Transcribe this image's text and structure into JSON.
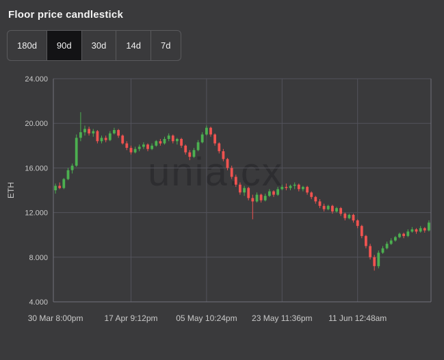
{
  "page": {
    "title": "Floor price candlestick"
  },
  "toolbar": {
    "ranges": [
      {
        "label": "180d"
      },
      {
        "label": "90d"
      },
      {
        "label": "30d"
      },
      {
        "label": "14d"
      },
      {
        "label": "7d"
      }
    ],
    "active_range": "90d"
  },
  "colors": {
    "background": "#3a3a3c",
    "up": "#4caf50",
    "down": "#ef5350",
    "grid": "#53535c",
    "axis_line": "#72727c",
    "axis_text": "#c9c9c9",
    "watermark": "#2d2d30",
    "button_active_bg": "#131315",
    "button_border": "#5a5a5d"
  },
  "chart_data": {
    "type": "candlestick",
    "title": "Floor price candlestick",
    "ylabel": "ETH",
    "watermark": "unia.cx",
    "y_range": [
      4,
      24
    ],
    "y_ticks": [
      {
        "value": 24,
        "label": "24.000"
      },
      {
        "value": 20,
        "label": "20.000"
      },
      {
        "value": 16,
        "label": "16.000"
      },
      {
        "value": 12,
        "label": "12.000"
      },
      {
        "value": 8,
        "label": "8.000"
      },
      {
        "value": 4,
        "label": "4.000"
      }
    ],
    "x_ticks": [
      {
        "index": 0,
        "label": "30 Mar 8:00pm"
      },
      {
        "index": 18,
        "label": "17 Apr 9:12pm"
      },
      {
        "index": 36,
        "label": "05 May 10:24pm"
      },
      {
        "index": 54,
        "label": "23 May 11:36pm"
      },
      {
        "index": 72,
        "label": "11 Jun 12:48am"
      }
    ],
    "candle_format": [
      "open",
      "high",
      "low",
      "close"
    ],
    "candles": [
      [
        14.0,
        14.6,
        13.7,
        14.4
      ],
      [
        14.4,
        14.7,
        14.1,
        14.2
      ],
      [
        14.2,
        15.1,
        14.1,
        15.0
      ],
      [
        15.0,
        16.0,
        14.9,
        15.8
      ],
      [
        15.8,
        16.4,
        15.5,
        16.2
      ],
      [
        16.2,
        19.0,
        16.1,
        18.7
      ],
      [
        18.7,
        21.0,
        18.4,
        19.2
      ],
      [
        19.2,
        19.8,
        18.9,
        19.5
      ],
      [
        19.5,
        19.7,
        18.9,
        19.1
      ],
      [
        19.1,
        19.5,
        18.8,
        19.3
      ],
      [
        19.3,
        19.4,
        18.2,
        18.4
      ],
      [
        18.4,
        18.9,
        18.2,
        18.7
      ],
      [
        18.7,
        18.9,
        18.3,
        18.5
      ],
      [
        18.5,
        19.3,
        18.4,
        19.1
      ],
      [
        19.1,
        19.6,
        19.0,
        19.4
      ],
      [
        19.4,
        19.5,
        18.7,
        18.9
      ],
      [
        18.9,
        19.0,
        18.1,
        18.2
      ],
      [
        18.2,
        18.4,
        17.6,
        17.8
      ],
      [
        17.8,
        18.0,
        17.2,
        17.4
      ],
      [
        17.4,
        17.9,
        17.3,
        17.7
      ],
      [
        17.7,
        18.1,
        17.5,
        17.9
      ],
      [
        17.9,
        18.3,
        17.7,
        18.1
      ],
      [
        18.1,
        18.2,
        17.5,
        17.7
      ],
      [
        17.7,
        18.2,
        17.6,
        18.0
      ],
      [
        18.0,
        18.5,
        17.9,
        18.4
      ],
      [
        18.4,
        18.6,
        18.0,
        18.2
      ],
      [
        18.2,
        18.8,
        18.1,
        18.6
      ],
      [
        18.6,
        19.1,
        18.4,
        18.9
      ],
      [
        18.9,
        19.0,
        18.2,
        18.4
      ],
      [
        18.4,
        18.7,
        18.1,
        18.6
      ],
      [
        18.6,
        18.7,
        17.8,
        18.0
      ],
      [
        18.0,
        18.1,
        17.2,
        17.4
      ],
      [
        17.4,
        17.6,
        16.7,
        17.0
      ],
      [
        17.0,
        17.8,
        16.9,
        17.6
      ],
      [
        17.6,
        18.5,
        17.5,
        18.3
      ],
      [
        18.3,
        19.2,
        18.2,
        19.0
      ],
      [
        19.0,
        19.8,
        18.9,
        19.6
      ],
      [
        19.6,
        19.7,
        18.8,
        19.0
      ],
      [
        19.0,
        19.1,
        18.0,
        18.2
      ],
      [
        18.2,
        18.3,
        17.3,
        17.5
      ],
      [
        17.5,
        17.7,
        16.6,
        16.8
      ],
      [
        16.8,
        16.9,
        15.8,
        16.0
      ],
      [
        16.0,
        16.2,
        15.0,
        15.2
      ],
      [
        15.2,
        15.4,
        14.3,
        14.5
      ],
      [
        14.5,
        14.7,
        13.6,
        13.8
      ],
      [
        13.8,
        14.4,
        13.5,
        14.2
      ],
      [
        14.2,
        14.3,
        13.1,
        13.3
      ],
      [
        13.3,
        13.6,
        11.4,
        13.0
      ],
      [
        13.0,
        13.8,
        12.9,
        13.6
      ],
      [
        13.6,
        13.7,
        12.9,
        13.1
      ],
      [
        13.1,
        13.7,
        13.0,
        13.5
      ],
      [
        13.5,
        14.1,
        13.4,
        13.9
      ],
      [
        13.9,
        14.0,
        13.4,
        13.6
      ],
      [
        13.6,
        14.3,
        13.5,
        14.1
      ],
      [
        14.1,
        14.5,
        14.0,
        14.3
      ],
      [
        14.3,
        14.6,
        14.0,
        14.2
      ],
      [
        14.2,
        14.5,
        14.0,
        14.4
      ],
      [
        14.4,
        14.7,
        14.1,
        14.5
      ],
      [
        14.5,
        14.6,
        13.9,
        14.1
      ],
      [
        14.1,
        14.4,
        13.9,
        14.3
      ],
      [
        14.3,
        14.4,
        13.6,
        13.8
      ],
      [
        13.8,
        13.9,
        13.2,
        13.4
      ],
      [
        13.4,
        13.5,
        12.8,
        13.0
      ],
      [
        13.0,
        13.2,
        12.4,
        12.6
      ],
      [
        12.6,
        12.8,
        12.1,
        12.3
      ],
      [
        12.3,
        12.7,
        12.2,
        12.6
      ],
      [
        12.6,
        12.7,
        11.9,
        12.1
      ],
      [
        12.1,
        12.5,
        12.0,
        12.4
      ],
      [
        12.4,
        12.5,
        11.7,
        11.9
      ],
      [
        11.9,
        12.0,
        11.3,
        11.5
      ],
      [
        11.5,
        11.9,
        11.4,
        11.8
      ],
      [
        11.8,
        11.9,
        11.1,
        11.3
      ],
      [
        11.3,
        11.4,
        10.6,
        10.8
      ],
      [
        10.8,
        10.9,
        9.7,
        9.9
      ],
      [
        9.9,
        10.0,
        8.8,
        9.0
      ],
      [
        9.0,
        9.2,
        7.8,
        8.0
      ],
      [
        8.0,
        8.2,
        6.8,
        7.2
      ],
      [
        7.2,
        8.6,
        7.0,
        8.4
      ],
      [
        8.4,
        9.0,
        8.3,
        8.8
      ],
      [
        8.8,
        9.4,
        8.7,
        9.2
      ],
      [
        9.2,
        9.7,
        9.1,
        9.5
      ],
      [
        9.5,
        9.9,
        9.4,
        9.8
      ],
      [
        9.8,
        10.2,
        9.7,
        10.1
      ],
      [
        10.1,
        10.2,
        9.7,
        9.9
      ],
      [
        9.9,
        10.5,
        9.8,
        10.3
      ],
      [
        10.3,
        10.7,
        10.2,
        10.5
      ],
      [
        10.5,
        10.6,
        10.1,
        10.3
      ],
      [
        10.3,
        10.8,
        10.2,
        10.6
      ],
      [
        10.6,
        10.7,
        10.2,
        10.4
      ],
      [
        10.4,
        11.3,
        10.3,
        11.1
      ]
    ]
  }
}
